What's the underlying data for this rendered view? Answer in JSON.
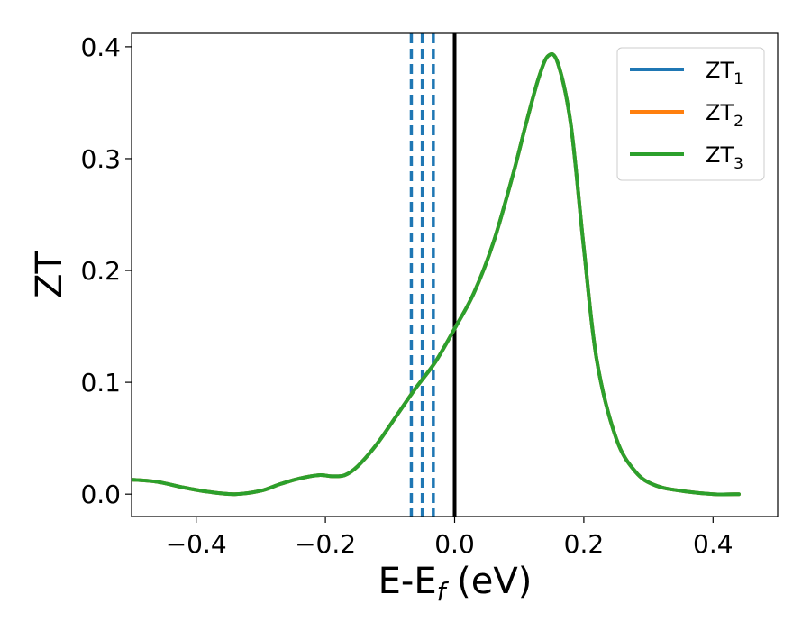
{
  "chart_data": {
    "type": "line",
    "xlabel_main": "E-E",
    "xlabel_sub": "f",
    "xlabel_tail": " (eV)",
    "ylabel": "ZT",
    "xlim": [
      -0.5,
      0.5
    ],
    "ylim": [
      -0.02,
      0.412
    ],
    "grid": false,
    "legend_position": "top-right",
    "x_ticks": [
      {
        "value": -0.4,
        "label": "−0.4"
      },
      {
        "value": -0.2,
        "label": "−0.2"
      },
      {
        "value": 0.0,
        "label": "0.0"
      },
      {
        "value": 0.2,
        "label": "0.2"
      },
      {
        "value": 0.4,
        "label": "0.4"
      }
    ],
    "y_ticks": [
      {
        "value": 0.0,
        "label": "0.0"
      },
      {
        "value": 0.1,
        "label": "0.1"
      },
      {
        "value": 0.2,
        "label": "0.2"
      },
      {
        "value": 0.3,
        "label": "0.3"
      },
      {
        "value": 0.4,
        "label": "0.4"
      }
    ],
    "series": [
      {
        "name_main": "ZT",
        "name_sub": "1",
        "color": "#1f77b4"
      },
      {
        "name_main": "ZT",
        "name_sub": "2",
        "color": "#ff7f0e"
      },
      {
        "name_main": "ZT",
        "name_sub": "3",
        "color": "#2ca02c"
      }
    ],
    "curve": {
      "x": [
        -0.5,
        -0.46,
        -0.42,
        -0.38,
        -0.34,
        -0.3,
        -0.27,
        -0.24,
        -0.21,
        -0.19,
        -0.17,
        -0.15,
        -0.12,
        -0.09,
        -0.06,
        -0.03,
        0.0,
        0.03,
        0.06,
        0.09,
        0.11,
        0.13,
        0.145,
        0.16,
        0.18,
        0.2,
        0.22,
        0.25,
        0.28,
        0.31,
        0.35,
        0.4,
        0.44
      ],
      "y": [
        0.013,
        0.011,
        0.006,
        0.002,
        0.0,
        0.003,
        0.009,
        0.014,
        0.017,
        0.016,
        0.017,
        0.025,
        0.045,
        0.07,
        0.095,
        0.118,
        0.148,
        0.18,
        0.225,
        0.285,
        0.33,
        0.372,
        0.392,
        0.385,
        0.33,
        0.22,
        0.12,
        0.05,
        0.02,
        0.008,
        0.003,
        0.0,
        0.0
      ]
    },
    "dashed_vlines": {
      "x": [
        -0.067,
        -0.05,
        -0.033
      ],
      "color": "#1f77b4"
    },
    "solid_vline": {
      "x": 0.0,
      "color": "#000000"
    }
  }
}
